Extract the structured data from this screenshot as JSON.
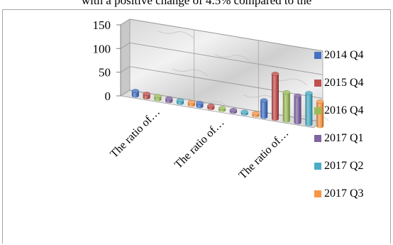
{
  "top_text": "with a positive change of 4.5% compared to the",
  "chart_data": {
    "type": "bar",
    "categories": [
      "The ratio of…",
      "The ratio of…",
      "The ratio of…"
    ],
    "series": [
      {
        "name": "2014 Q4",
        "color": "#4472c4",
        "values": [
          10,
          7,
          35
        ]
      },
      {
        "name": "2015 Q4",
        "color": "#c0504d",
        "values": [
          8,
          5,
          95
        ]
      },
      {
        "name": "2016 Q4",
        "color": "#9bbb59",
        "values": [
          7,
          4,
          60
        ]
      },
      {
        "name": "2017 Q1",
        "color": "#8064a2",
        "values": [
          6,
          4,
          57
        ]
      },
      {
        "name": "2017 Q2",
        "color": "#4bacc6",
        "values": [
          6,
          4,
          66
        ]
      },
      {
        "name": "2017 Q3",
        "color": "#f79646",
        "values": [
          6,
          5,
          52
        ]
      }
    ],
    "yticks": [
      0,
      50,
      100,
      150
    ],
    "ylim": [
      0,
      150
    ],
    "grid": true,
    "legend_position": "right"
  }
}
